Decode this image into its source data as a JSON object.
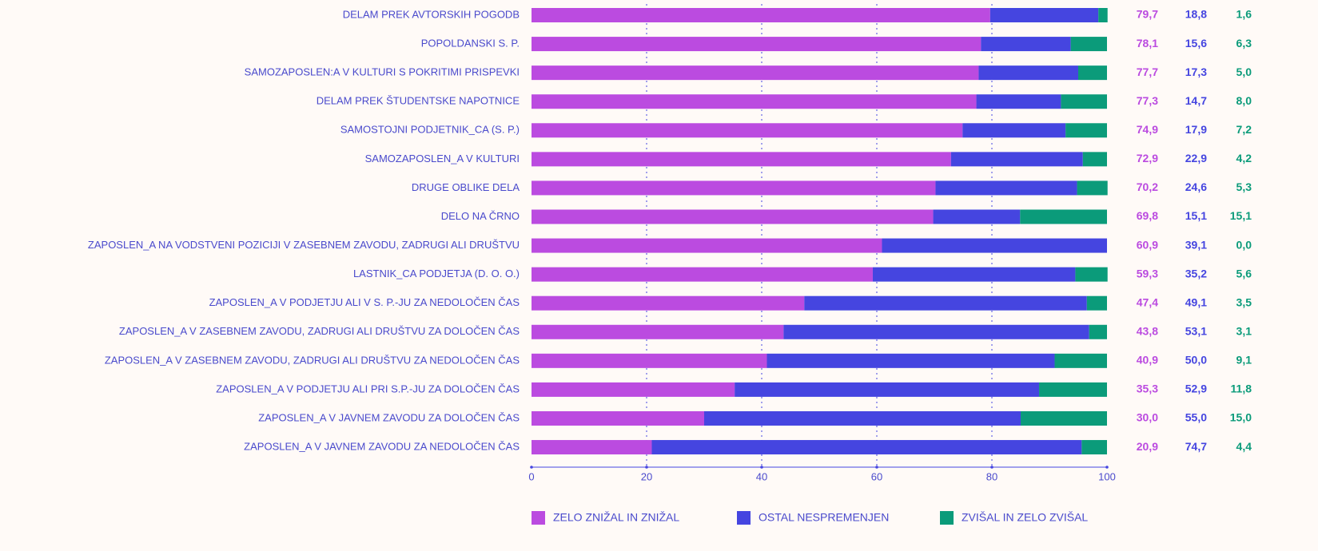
{
  "chart_data": {
    "type": "stacked_barh",
    "categories": [
      "DELAM PREK AVTORSKIH POGODB",
      "POPOLDANSKI S. P.",
      "SAMOZAPOSLEN:A V KULTURI S POKRITIMI PRISPEVKI",
      "DELAM PREK ŠTUDENTSKE NAPOTNICE",
      "SAMOSTOJNI PODJETNIK_CA (S. P.)",
      "SAMOZAPOSLEN_A V KULTURI",
      "DRUGE OBLIKE DELA",
      "DELO NA ČRNO",
      "ZAPOSLEN_A NA VODSTVENI POZICIJI V ZASEBNEM ZAVODU, ZADRUGI ALI DRUŠTVU",
      "LASTNIK_CA PODJETJA (D. O. O.)",
      "ZAPOSLEN_A V PODJETJU ALI V S. P.-JU ZA NEDOLOČEN ČAS",
      "ZAPOSLEN_A V ZASEBNEM ZAVODU, ZADRUGI ALI DRUŠTVU ZA DOLOČEN ČAS",
      "ZAPOSLEN_A V ZASEBNEM ZAVODU, ZADRUGI ALI DRUŠTVU ZA NEDOLOČEN ČAS",
      "ZAPOSLEN_A V PODJETJU ALI PRI S.P.-JU ZA DOLOČEN ČAS",
      "ZAPOSLEN_A V JAVNEM ZAVODU ZA DOLOČEN ČAS",
      "ZAPOSLEN_A V JAVNEM ZAVODU ZA NEDOLOČEN ČAS"
    ],
    "series": [
      {
        "name": "ZELO ZNIŽAL IN ZNIŽAL",
        "color": "#bb4be0",
        "values": [
          79.7,
          78.1,
          77.7,
          77.3,
          74.9,
          72.9,
          70.2,
          69.8,
          60.9,
          59.3,
          47.4,
          43.8,
          40.9,
          35.3,
          30.0,
          20.9
        ],
        "value_labels": [
          "79,7",
          "78,1",
          "77,7",
          "77,3",
          "74,9",
          "72,9",
          "70,2",
          "69,8",
          "60,9",
          "59,3",
          "47,4",
          "43,8",
          "40,9",
          "35,3",
          "30,0",
          "20,9"
        ]
      },
      {
        "name": "OSTAL NESPREMENJEN",
        "color": "#4545e0",
        "values": [
          18.8,
          15.6,
          17.3,
          14.7,
          17.9,
          22.9,
          24.6,
          15.1,
          39.1,
          35.2,
          49.1,
          53.1,
          50.0,
          52.9,
          55.0,
          74.7
        ],
        "value_labels": [
          "18,8",
          "15,6",
          "17,3",
          "14,7",
          "17,9",
          "22,9",
          "24,6",
          "15,1",
          "39,1",
          "35,2",
          "49,1",
          "53,1",
          "50,0",
          "52,9",
          "55,0",
          "74,7"
        ]
      },
      {
        "name": "ZVIŠAL IN ZELO ZVIŠAL",
        "color": "#0b9b7a",
        "values": [
          1.6,
          6.3,
          5.0,
          8.0,
          7.2,
          4.2,
          5.3,
          15.1,
          0.0,
          5.6,
          3.5,
          3.1,
          9.1,
          11.8,
          15.0,
          4.4
        ],
        "value_labels": [
          "1,6",
          "6,3",
          "5,0",
          "8,0",
          "7,2",
          "4,2",
          "5,3",
          "15,1",
          "0,0",
          "5,6",
          "3,5",
          "3,1",
          "9,1",
          "11,8",
          "15,0",
          "4,4"
        ]
      }
    ],
    "xlim": [
      0,
      100
    ],
    "xticks": [
      0,
      20,
      40,
      60,
      80,
      100
    ],
    "grid": true,
    "legend": "bottom"
  }
}
